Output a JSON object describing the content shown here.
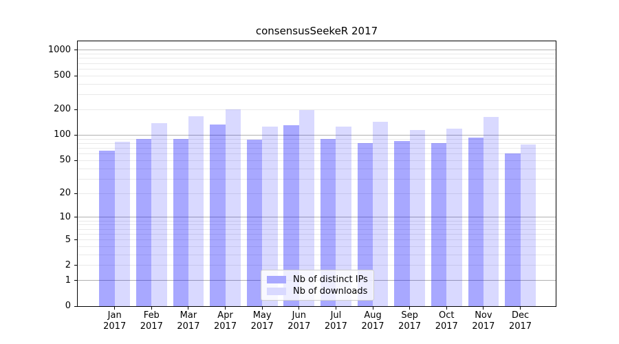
{
  "chart_data": {
    "type": "bar",
    "title": "consensusSeekeR 2017",
    "categories": [
      "Jan 2017",
      "Feb 2017",
      "Mar 2017",
      "Apr 2017",
      "May 2017",
      "Jun 2017",
      "Jul 2017",
      "Aug 2017",
      "Sep 2017",
      "Oct 2017",
      "Nov 2017",
      "Dec 2017"
    ],
    "series": [
      {
        "name": "Nb of distinct IPs",
        "color": "rgba(0,0,255,0.34)",
        "solid_hex": "#a8a8ff",
        "values": [
          65,
          90,
          90,
          133,
          89,
          130,
          90,
          80,
          85,
          81,
          93,
          61
        ]
      },
      {
        "name": "Nb of downloads",
        "color": "rgba(0,0,255,0.15)",
        "solid_hex": "#d9d9ff",
        "values": [
          84,
          138,
          167,
          200,
          127,
          199,
          127,
          144,
          114,
          119,
          164,
          77
        ]
      }
    ],
    "xlabel": "",
    "ylabel": "",
    "y_scale": "log10(1+x)",
    "ylim": [
      0,
      1270
    ],
    "y_ticks": [
      0,
      1,
      2,
      5,
      10,
      20,
      50,
      100,
      200,
      500,
      1000
    ],
    "grid": {
      "major_values": [
        1,
        10,
        100,
        1000
      ],
      "minor_values": [
        2,
        3,
        4,
        5,
        6,
        7,
        8,
        9,
        20,
        30,
        40,
        50,
        60,
        70,
        80,
        90,
        200,
        300,
        400,
        500,
        600,
        700,
        800,
        900
      ],
      "major_color": "#b0b0b0",
      "minor_color": "#e9e9e9"
    },
    "legend": {
      "position": "bottom-center-inside"
    },
    "axis_color": "#000000",
    "background": "#ffffff"
  }
}
